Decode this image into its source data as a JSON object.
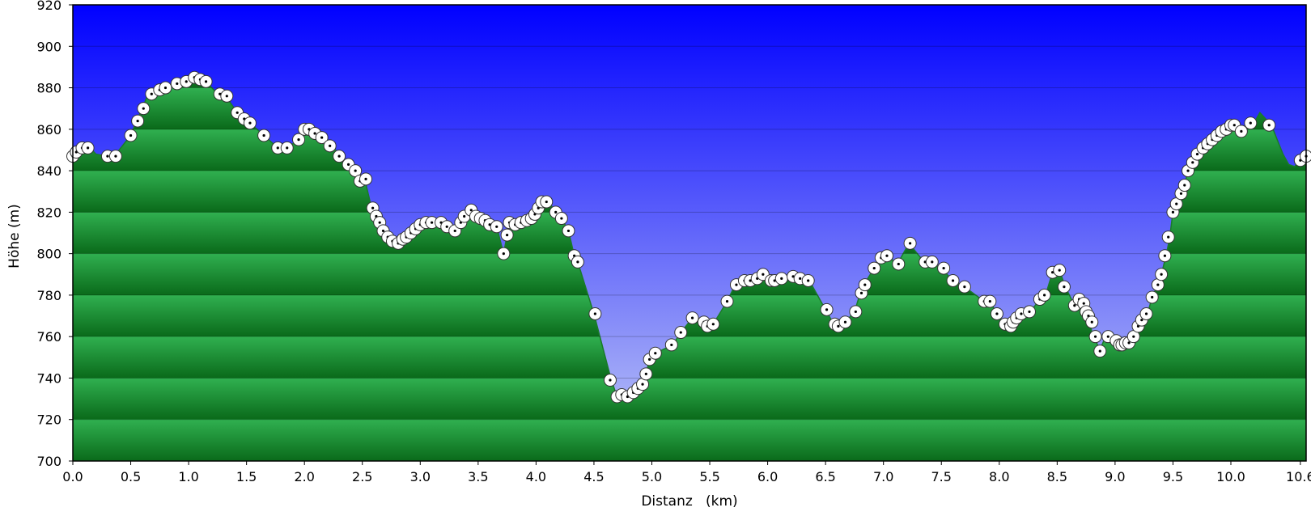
{
  "chart_data": {
    "type": "area",
    "xlabel": "Distanz   (km)",
    "ylabel": "Höhe (m)",
    "xlim": [
      0,
      10.65
    ],
    "ylim": [
      700,
      920
    ],
    "y_ticks": [
      700,
      720,
      740,
      760,
      780,
      800,
      820,
      840,
      860,
      880,
      900,
      920
    ],
    "x_ticks": [
      "0.0",
      "0.5",
      "1.0",
      "1.5",
      "2.0",
      "2.5",
      "3.0",
      "3.5",
      "4.0",
      "4.5",
      "5.0",
      "5.5",
      "6.0",
      "6.5",
      "7.0",
      "7.5",
      "8.0",
      "8.5",
      "9.0",
      "9.5",
      "10.0",
      "10.6"
    ],
    "x_tick_values": [
      0,
      0.5,
      1,
      1.5,
      2,
      2.5,
      3,
      3.5,
      4,
      4.5,
      5,
      5.5,
      6,
      6.5,
      7,
      7.5,
      8,
      8.5,
      9,
      9.5,
      10,
      10.6
    ],
    "grid": "horizontal",
    "colors": {
      "sky_top": "#0000ff",
      "sky_bottom": "#b8c2f4",
      "terrain_light": "#30b050",
      "terrain_dark": "#0a6a1a",
      "outline": "#1a7a2a",
      "marker_fill": "#ffffff",
      "marker_stroke": "#333333"
    },
    "profile": [
      [
        0.0,
        846
      ],
      [
        0.05,
        849
      ],
      [
        0.1,
        851
      ],
      [
        0.15,
        851
      ],
      [
        0.2,
        848
      ],
      [
        0.3,
        847
      ],
      [
        0.35,
        847
      ],
      [
        0.4,
        850
      ],
      [
        0.5,
        857
      ],
      [
        0.55,
        864
      ],
      [
        0.6,
        870
      ],
      [
        0.65,
        877
      ],
      [
        0.75,
        880
      ],
      [
        0.8,
        880
      ],
      [
        0.9,
        882
      ],
      [
        1.0,
        883
      ],
      [
        1.05,
        885
      ],
      [
        1.1,
        884
      ],
      [
        1.15,
        883
      ],
      [
        1.2,
        880
      ],
      [
        1.25,
        877
      ],
      [
        1.32,
        876
      ],
      [
        1.42,
        868
      ],
      [
        1.48,
        865
      ],
      [
        1.53,
        863
      ],
      [
        1.65,
        857
      ],
      [
        1.77,
        851
      ],
      [
        1.85,
        851
      ],
      [
        1.95,
        855
      ],
      [
        2.0,
        860
      ],
      [
        2.05,
        860
      ],
      [
        2.1,
        859
      ],
      [
        2.15,
        857
      ],
      [
        2.22,
        853
      ],
      [
        2.3,
        848
      ],
      [
        2.38,
        843
      ],
      [
        2.45,
        840
      ],
      [
        2.48,
        835
      ],
      [
        2.52,
        836
      ],
      [
        2.58,
        822
      ],
      [
        2.62,
        817
      ],
      [
        2.65,
        814
      ],
      [
        2.68,
        811
      ],
      [
        2.72,
        807
      ],
      [
        2.76,
        806
      ],
      [
        2.8,
        805
      ],
      [
        2.86,
        807
      ],
      [
        2.9,
        809
      ],
      [
        2.95,
        811
      ],
      [
        3.0,
        813
      ],
      [
        3.05,
        815
      ],
      [
        3.1,
        815
      ],
      [
        3.2,
        814
      ],
      [
        3.25,
        813
      ],
      [
        3.3,
        811
      ],
      [
        3.35,
        815
      ],
      [
        3.38,
        818
      ],
      [
        3.43,
        821
      ],
      [
        3.48,
        818
      ],
      [
        3.52,
        817
      ],
      [
        3.55,
        816
      ],
      [
        3.6,
        815
      ],
      [
        3.66,
        813
      ],
      [
        3.72,
        800
      ],
      [
        3.75,
        809
      ],
      [
        3.78,
        815
      ],
      [
        3.83,
        814
      ],
      [
        3.88,
        815
      ],
      [
        3.93,
        817
      ],
      [
        3.98,
        819
      ],
      [
        4.02,
        822
      ],
      [
        4.05,
        825
      ],
      [
        4.1,
        825
      ],
      [
        4.18,
        820
      ],
      [
        4.22,
        817
      ],
      [
        4.28,
        811
      ],
      [
        4.33,
        799
      ],
      [
        4.36,
        796
      ],
      [
        4.5,
        771
      ],
      [
        4.65,
        739
      ],
      [
        4.7,
        731
      ],
      [
        4.75,
        731
      ],
      [
        4.8,
        731
      ],
      [
        4.85,
        733
      ],
      [
        4.9,
        736
      ],
      [
        4.93,
        738
      ],
      [
        4.95,
        742
      ],
      [
        4.98,
        749
      ],
      [
        5.03,
        752
      ],
      [
        5.18,
        756
      ],
      [
        5.25,
        762
      ],
      [
        5.35,
        769
      ],
      [
        5.45,
        767
      ],
      [
        5.5,
        766
      ],
      [
        5.53,
        766
      ],
      [
        5.65,
        777
      ],
      [
        5.72,
        785
      ],
      [
        5.78,
        786
      ],
      [
        5.85,
        787
      ],
      [
        5.9,
        788
      ],
      [
        5.95,
        790
      ],
      [
        6.02,
        788
      ],
      [
        6.05,
        787
      ],
      [
        6.12,
        788
      ],
      [
        6.22,
        789
      ],
      [
        6.28,
        788
      ],
      [
        6.33,
        788
      ],
      [
        6.36,
        787
      ],
      [
        6.5,
        773
      ],
      [
        6.57,
        766
      ],
      [
        6.6,
        765
      ],
      [
        6.67,
        767
      ],
      [
        6.75,
        772
      ],
      [
        6.8,
        781
      ],
      [
        6.83,
        785
      ],
      [
        6.92,
        793
      ],
      [
        6.98,
        798
      ],
      [
        7.03,
        799
      ],
      [
        7.12,
        795
      ],
      [
        7.22,
        805
      ],
      [
        7.35,
        796
      ],
      [
        7.4,
        796
      ],
      [
        7.5,
        793
      ],
      [
        7.6,
        787
      ],
      [
        7.7,
        784
      ],
      [
        7.87,
        777
      ],
      [
        7.92,
        777
      ],
      [
        7.98,
        771
      ],
      [
        8.05,
        766
      ],
      [
        8.1,
        765
      ],
      [
        8.13,
        768
      ],
      [
        8.17,
        770
      ],
      [
        8.22,
        771
      ],
      [
        8.27,
        772
      ],
      [
        8.35,
        778
      ],
      [
        8.4,
        780
      ],
      [
        8.46,
        791
      ],
      [
        8.52,
        792
      ],
      [
        8.57,
        784
      ],
      [
        8.65,
        775
      ],
      [
        8.7,
        777
      ],
      [
        8.73,
        776
      ],
      [
        8.75,
        772
      ],
      [
        8.78,
        767
      ],
      [
        8.81,
        760
      ],
      [
        8.87,
        754
      ],
      [
        8.92,
        760
      ],
      [
        9.0,
        758
      ],
      [
        9.05,
        756
      ],
      [
        9.08,
        756
      ],
      [
        9.12,
        757
      ],
      [
        9.15,
        757
      ],
      [
        9.2,
        760
      ],
      [
        9.23,
        765
      ],
      [
        9.25,
        768
      ],
      [
        9.28,
        771
      ],
      [
        9.32,
        779
      ],
      [
        9.37,
        785
      ],
      [
        9.4,
        790
      ],
      [
        9.44,
        799
      ],
      [
        9.47,
        807
      ],
      [
        9.5,
        820
      ],
      [
        9.53,
        824
      ],
      [
        9.56,
        829
      ],
      [
        9.6,
        833
      ],
      [
        9.63,
        840
      ],
      [
        9.67,
        844
      ],
      [
        9.7,
        846
      ],
      [
        9.75,
        850
      ],
      [
        9.8,
        852
      ],
      [
        9.84,
        855
      ],
      [
        9.88,
        857
      ],
      [
        9.92,
        859
      ],
      [
        9.97,
        860
      ],
      [
        10.02,
        862
      ],
      [
        10.07,
        862
      ],
      [
        10.1,
        860
      ],
      [
        10.15,
        860
      ],
      [
        10.2,
        863
      ],
      [
        10.25,
        868
      ],
      [
        10.35,
        862
      ],
      [
        10.4,
        855
      ],
      [
        10.45,
        848
      ],
      [
        10.5,
        843
      ],
      [
        10.55,
        842
      ],
      [
        10.6,
        845
      ],
      [
        10.65,
        847
      ]
    ],
    "markers": [
      [
        0.0,
        847
      ],
      [
        0.03,
        849
      ],
      [
        0.08,
        851
      ],
      [
        0.13,
        851
      ],
      [
        0.3,
        847
      ],
      [
        0.37,
        847
      ],
      [
        0.5,
        857
      ],
      [
        0.56,
        864
      ],
      [
        0.61,
        870
      ],
      [
        0.68,
        877
      ],
      [
        0.75,
        879
      ],
      [
        0.8,
        880
      ],
      [
        0.9,
        882
      ],
      [
        0.98,
        883
      ],
      [
        1.05,
        885
      ],
      [
        1.1,
        884
      ],
      [
        1.15,
        883
      ],
      [
        1.27,
        877
      ],
      [
        1.33,
        876
      ],
      [
        1.42,
        868
      ],
      [
        1.48,
        865
      ],
      [
        1.53,
        863
      ],
      [
        1.65,
        857
      ],
      [
        1.77,
        851
      ],
      [
        1.85,
        851
      ],
      [
        1.95,
        855
      ],
      [
        2.0,
        860
      ],
      [
        2.04,
        860
      ],
      [
        2.09,
        858
      ],
      [
        2.15,
        856
      ],
      [
        2.22,
        852
      ],
      [
        2.3,
        847
      ],
      [
        2.38,
        843
      ],
      [
        2.44,
        840
      ],
      [
        2.48,
        835
      ],
      [
        2.53,
        836
      ],
      [
        2.59,
        822
      ],
      [
        2.62,
        818
      ],
      [
        2.65,
        815
      ],
      [
        2.68,
        811
      ],
      [
        2.72,
        808
      ],
      [
        2.76,
        806
      ],
      [
        2.81,
        805
      ],
      [
        2.85,
        807
      ],
      [
        2.88,
        808
      ],
      [
        2.92,
        810
      ],
      [
        2.96,
        812
      ],
      [
        3.0,
        814
      ],
      [
        3.05,
        815
      ],
      [
        3.1,
        815
      ],
      [
        3.18,
        815
      ],
      [
        3.23,
        813
      ],
      [
        3.3,
        811
      ],
      [
        3.35,
        815
      ],
      [
        3.38,
        818
      ],
      [
        3.44,
        821
      ],
      [
        3.48,
        818
      ],
      [
        3.52,
        817
      ],
      [
        3.56,
        816
      ],
      [
        3.6,
        814
      ],
      [
        3.66,
        813
      ],
      [
        3.72,
        800
      ],
      [
        3.75,
        809
      ],
      [
        3.77,
        815
      ],
      [
        3.82,
        814
      ],
      [
        3.87,
        815
      ],
      [
        3.92,
        816
      ],
      [
        3.96,
        817
      ],
      [
        3.99,
        819
      ],
      [
        4.02,
        822
      ],
      [
        4.05,
        825
      ],
      [
        4.09,
        825
      ],
      [
        4.17,
        820
      ],
      [
        4.22,
        817
      ],
      [
        4.28,
        811
      ],
      [
        4.33,
        799
      ],
      [
        4.36,
        796
      ],
      [
        4.51,
        771
      ],
      [
        4.64,
        739
      ],
      [
        4.7,
        731
      ],
      [
        4.74,
        732
      ],
      [
        4.79,
        731
      ],
      [
        4.84,
        733
      ],
      [
        4.88,
        735
      ],
      [
        4.92,
        737
      ],
      [
        4.95,
        742
      ],
      [
        4.98,
        749
      ],
      [
        5.03,
        752
      ],
      [
        5.17,
        756
      ],
      [
        5.25,
        762
      ],
      [
        5.35,
        769
      ],
      [
        5.45,
        767
      ],
      [
        5.48,
        765
      ],
      [
        5.53,
        766
      ],
      [
        5.65,
        777
      ],
      [
        5.73,
        785
      ],
      [
        5.8,
        787
      ],
      [
        5.85,
        787
      ],
      [
        5.91,
        788
      ],
      [
        5.96,
        790
      ],
      [
        6.03,
        787
      ],
      [
        6.06,
        787
      ],
      [
        6.12,
        788
      ],
      [
        6.22,
        789
      ],
      [
        6.28,
        788
      ],
      [
        6.35,
        787
      ],
      [
        6.51,
        773
      ],
      [
        6.58,
        766
      ],
      [
        6.61,
        765
      ],
      [
        6.67,
        767
      ],
      [
        6.76,
        772
      ],
      [
        6.81,
        781
      ],
      [
        6.84,
        785
      ],
      [
        6.92,
        793
      ],
      [
        6.98,
        798
      ],
      [
        7.03,
        799
      ],
      [
        7.13,
        795
      ],
      [
        7.23,
        805
      ],
      [
        7.36,
        796
      ],
      [
        7.42,
        796
      ],
      [
        7.52,
        793
      ],
      [
        7.6,
        787
      ],
      [
        7.7,
        784
      ],
      [
        7.87,
        777
      ],
      [
        7.92,
        777
      ],
      [
        7.98,
        771
      ],
      [
        8.05,
        766
      ],
      [
        8.1,
        765
      ],
      [
        8.12,
        767
      ],
      [
        8.15,
        769
      ],
      [
        8.19,
        771
      ],
      [
        8.26,
        772
      ],
      [
        8.35,
        778
      ],
      [
        8.39,
        780
      ],
      [
        8.46,
        791
      ],
      [
        8.52,
        792
      ],
      [
        8.56,
        784
      ],
      [
        8.65,
        775
      ],
      [
        8.69,
        778
      ],
      [
        8.73,
        776
      ],
      [
        8.75,
        772
      ],
      [
        8.77,
        770
      ],
      [
        8.8,
        767
      ],
      [
        8.83,
        760
      ],
      [
        8.87,
        753
      ],
      [
        8.94,
        760
      ],
      [
        9.01,
        758
      ],
      [
        9.04,
        756
      ],
      [
        9.06,
        756
      ],
      [
        9.09,
        757
      ],
      [
        9.12,
        757
      ],
      [
        9.16,
        760
      ],
      [
        9.2,
        765
      ],
      [
        9.23,
        768
      ],
      [
        9.27,
        771
      ],
      [
        9.32,
        779
      ],
      [
        9.37,
        785
      ],
      [
        9.4,
        790
      ],
      [
        9.43,
        799
      ],
      [
        9.46,
        808
      ],
      [
        9.5,
        820
      ],
      [
        9.53,
        824
      ],
      [
        9.57,
        829
      ],
      [
        9.6,
        833
      ],
      [
        9.63,
        840
      ],
      [
        9.67,
        844
      ],
      [
        9.71,
        848
      ],
      [
        9.76,
        851
      ],
      [
        9.8,
        853
      ],
      [
        9.84,
        855
      ],
      [
        9.88,
        857
      ],
      [
        9.92,
        859
      ],
      [
        9.96,
        860
      ],
      [
        10.0,
        862
      ],
      [
        10.03,
        862
      ],
      [
        10.09,
        859
      ],
      [
        10.17,
        863
      ],
      [
        10.33,
        862
      ],
      [
        10.6,
        845
      ],
      [
        10.65,
        847
      ]
    ]
  }
}
